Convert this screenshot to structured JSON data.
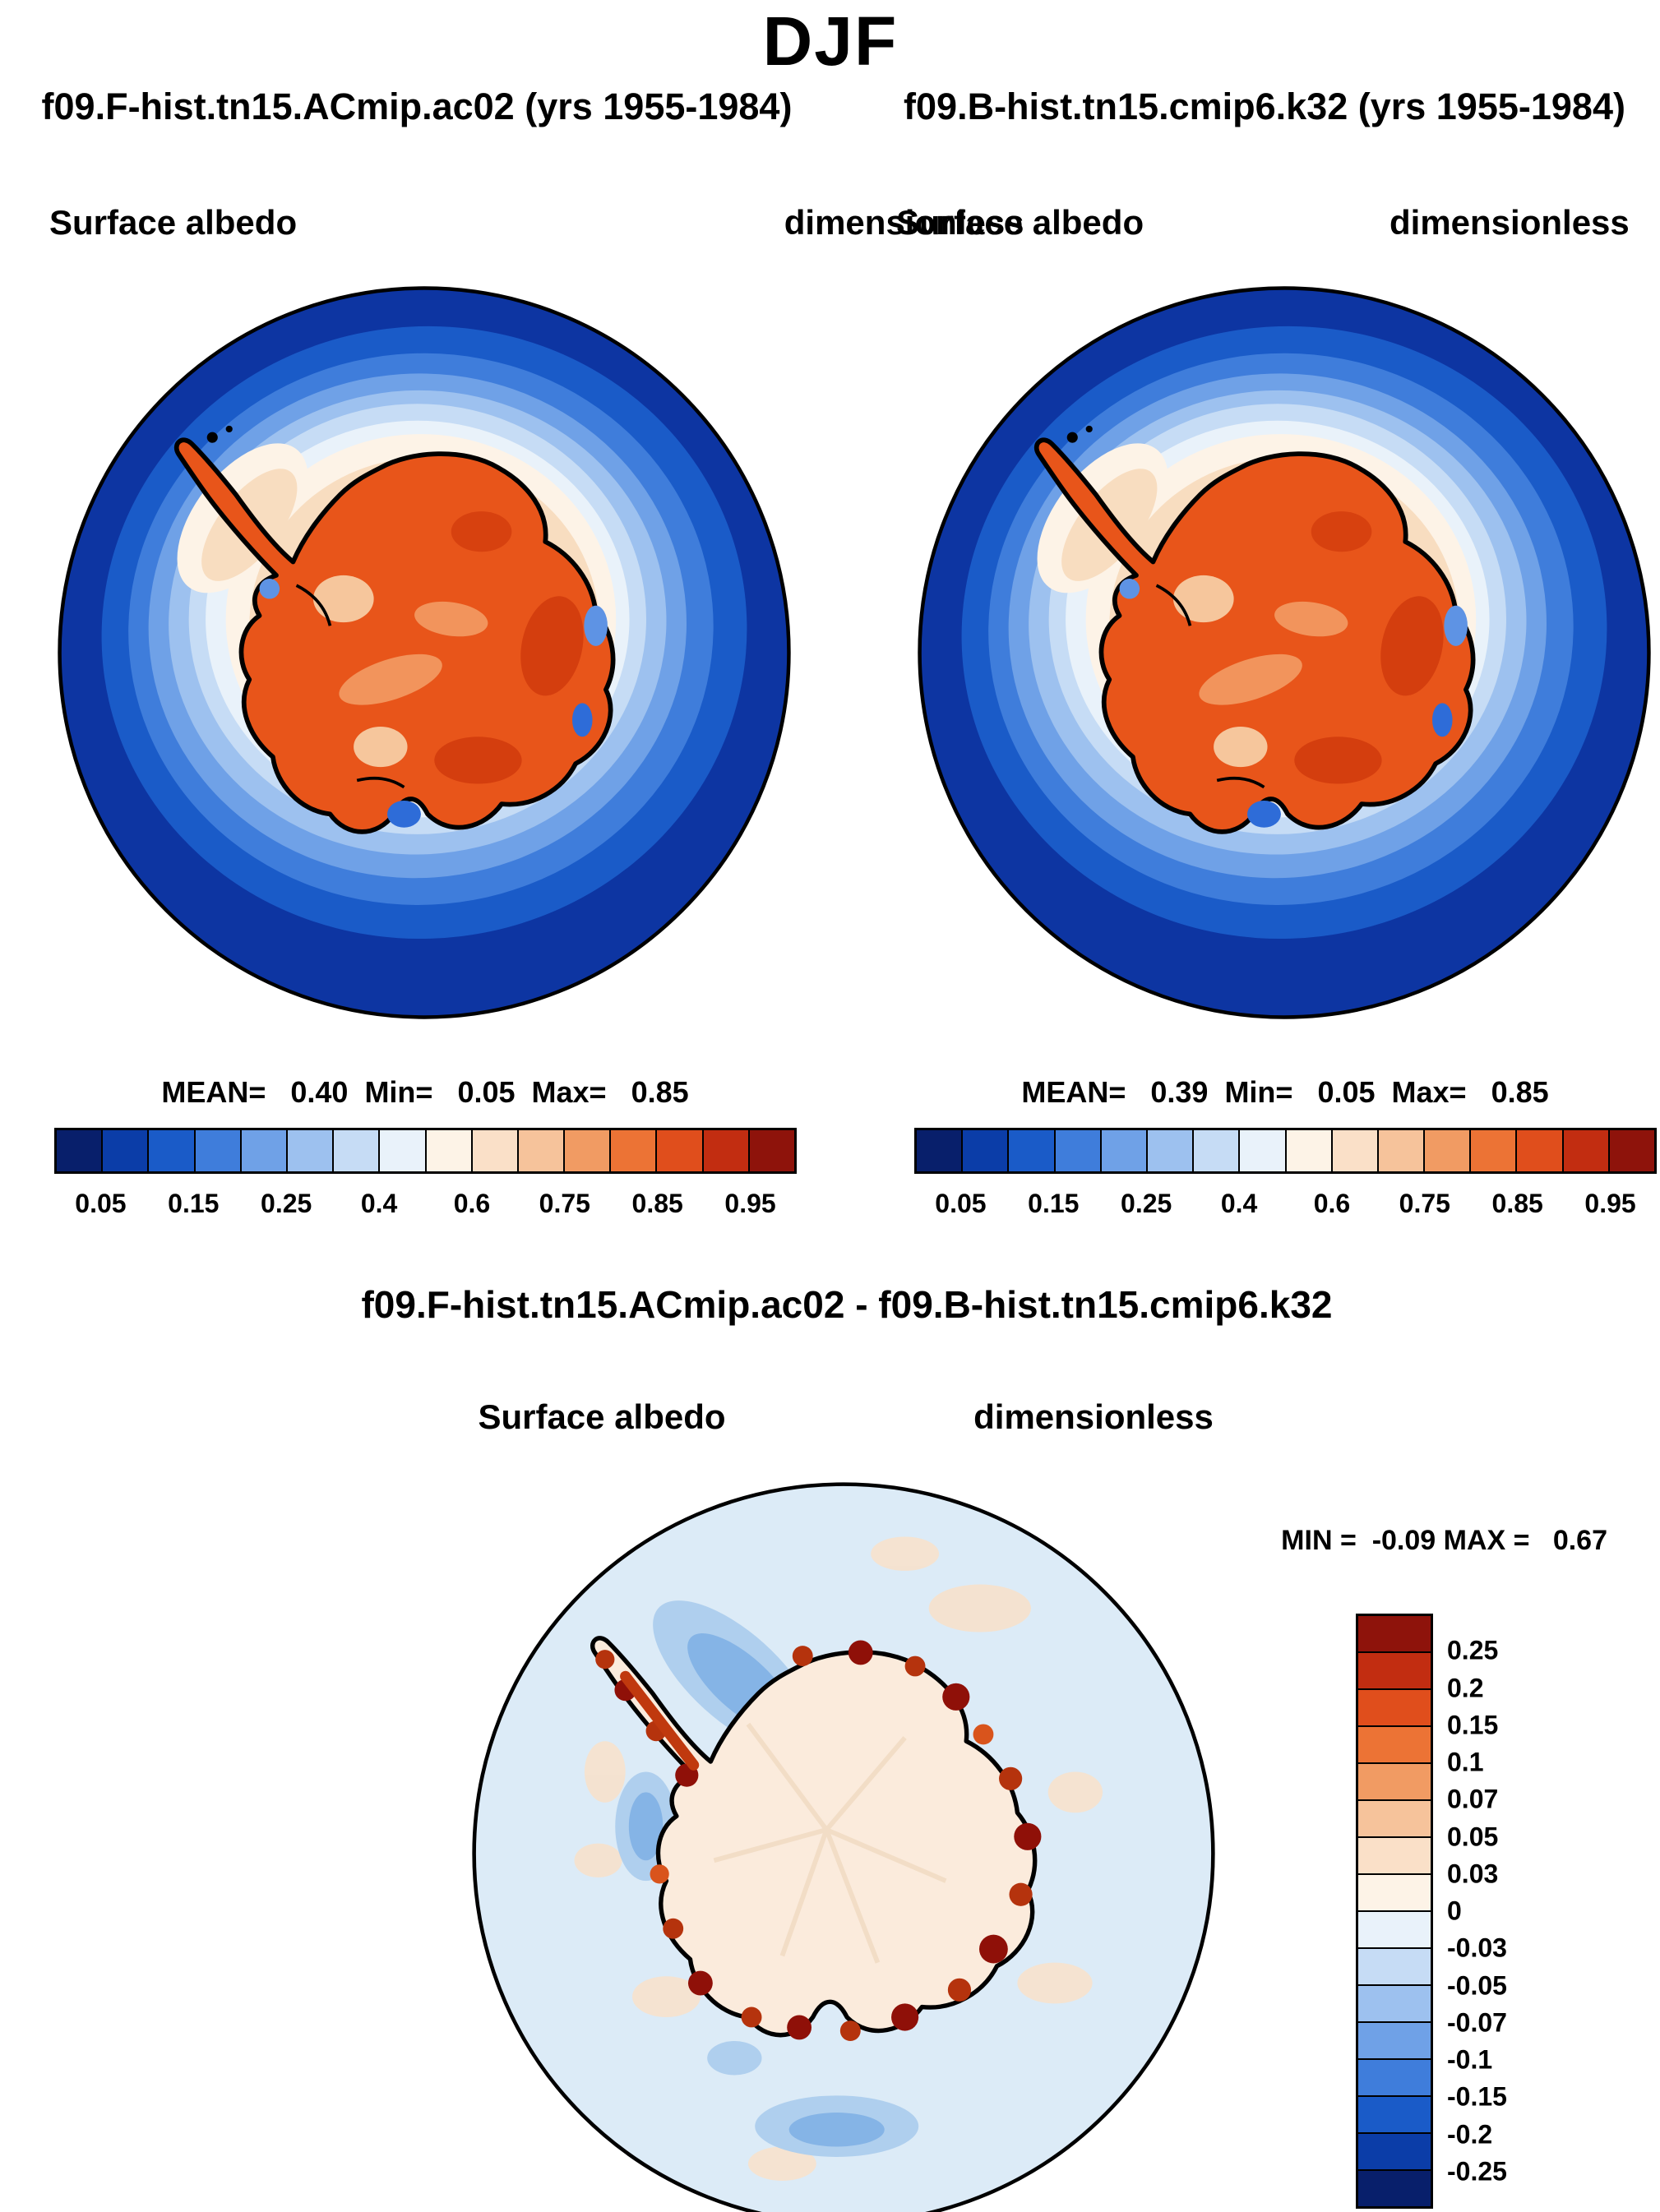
{
  "title": "DJF",
  "panels": [
    {
      "header": "f09.F-hist.tn15.ACmip.ac02 (yrs 1955-1984)",
      "var_label": "Surface albedo",
      "units_label": "dimensionless",
      "stats_line": "MEAN=   0.40  Min=   0.05  Max=   0.85",
      "mean": 0.4,
      "min": 0.05,
      "max": 0.85
    },
    {
      "header": "f09.B-hist.tn15.cmip6.k32 (yrs 1955-1984)",
      "var_label": "Surface albedo",
      "units_label": "dimensionless",
      "stats_line": "MEAN=   0.39  Min=   0.05  Max=   0.85",
      "mean": 0.39,
      "min": 0.05,
      "max": 0.85
    }
  ],
  "albedo_colorbar": {
    "tick_labels": [
      "0.05",
      "0.15",
      "0.25",
      "0.4",
      "0.6",
      "0.75",
      "0.85",
      "0.95"
    ],
    "colors": [
      "#081F6B",
      "#0B3DA8",
      "#1A5BC8",
      "#3F7DDB",
      "#6FA1E7",
      "#9DC1EF",
      "#C6DCF5",
      "#E9F2FA",
      "#FDF3E7",
      "#FAE0C8",
      "#F6C39B",
      "#F19B63",
      "#EC7335",
      "#E04E1C",
      "#C22D11",
      "#8E130B"
    ]
  },
  "diff_panel": {
    "header": "f09.F-hist.tn15.ACmip.ac02 - f09.B-hist.tn15.cmip6.k32",
    "var_label": "Surface albedo",
    "units_label": "dimensionless",
    "stats_line": "MIN =  -0.09 MAX =   0.67",
    "min": -0.09,
    "max": 0.67,
    "colorbar": {
      "tick_labels": [
        "0.25",
        "0.2",
        "0.15",
        "0.1",
        "0.07",
        "0.05",
        "0.03",
        "0",
        "-0.03",
        "-0.05",
        "-0.07",
        "-0.1",
        "-0.15",
        "-0.2",
        "-0.25"
      ],
      "colors": [
        "#8E130B",
        "#C22D11",
        "#E04E1C",
        "#EC7335",
        "#F19B63",
        "#F6C39B",
        "#FAE0C8",
        "#FDF3E7",
        "#E9F2FA",
        "#C6DCF5",
        "#9DC1EF",
        "#6FA1E7",
        "#3F7DDB",
        "#1A5BC8",
        "#0B3DA8",
        "#081F6B"
      ]
    }
  },
  "chart_data": [
    {
      "type": "heatmap",
      "subtype": "south-polar-stereographic-filled-contour-map",
      "title": "f09.F-hist.tn15.ACmip.ac02 (yrs 1955-1984)",
      "season": "DJF",
      "variable": "Surface albedo",
      "units": "dimensionless",
      "region": "Antarctica / Southern Ocean",
      "stats": {
        "mean": 0.4,
        "min": 0.05,
        "max": 0.85
      },
      "colorbar_tick_labels": [
        0.05,
        0.15,
        0.25,
        0.4,
        0.6,
        0.75,
        0.85,
        0.95
      ],
      "n_color_levels": 16,
      "palette": "blue-white-red diverging",
      "legend_position": "horizontal bar below map",
      "description": "Dark blue open ocean (~0.05-0.1) grading through lighter blues and white sea-ice transition to pale peach ice shelves (~0.5-0.6) and orange-red continental ice sheet (~0.8-0.85); Antarctic coastline drawn in black with peninsula at upper left"
    },
    {
      "type": "heatmap",
      "subtype": "south-polar-stereographic-filled-contour-map",
      "title": "f09.B-hist.tn15.cmip6.k32 (yrs 1955-1984)",
      "season": "DJF",
      "variable": "Surface albedo",
      "units": "dimensionless",
      "region": "Antarctica / Southern Ocean",
      "stats": {
        "mean": 0.39,
        "min": 0.05,
        "max": 0.85
      },
      "colorbar_tick_labels": [
        0.05,
        0.15,
        0.25,
        0.4,
        0.6,
        0.75,
        0.85,
        0.95
      ],
      "n_color_levels": 16,
      "palette": "blue-white-red diverging",
      "legend_position": "horizontal bar below map",
      "description": "Nearly identical pattern to left panel with mean 0.39 instead of 0.40"
    },
    {
      "type": "heatmap",
      "subtype": "difference-map",
      "title": "f09.F-hist.tn15.ACmip.ac02 - f09.B-hist.tn15.cmip6.k32",
      "season": "DJF",
      "variable": "Surface albedo",
      "units": "dimensionless",
      "stats": {
        "min": -0.09,
        "max": 0.67
      },
      "colorbar_tick_labels": [
        0.25,
        0.2,
        0.15,
        0.1,
        0.07,
        0.05,
        0.03,
        0,
        -0.03,
        -0.05,
        -0.07,
        -0.1,
        -0.15,
        -0.2,
        -0.25
      ],
      "n_color_levels": 16,
      "palette": "red (positive) to blue (negative) diverging",
      "legend_position": "vertical bar right of map",
      "description": "Mostly near-zero pale differences; strong positive (dark red) bands up to ~0.25 hugging the Antarctic coastline and peninsula; weak negative (light-medium blue, ~-0.03 to -0.1) patches in the sea-ice zone northwest of the peninsula and in a band near the bottom of the domain"
    }
  ]
}
